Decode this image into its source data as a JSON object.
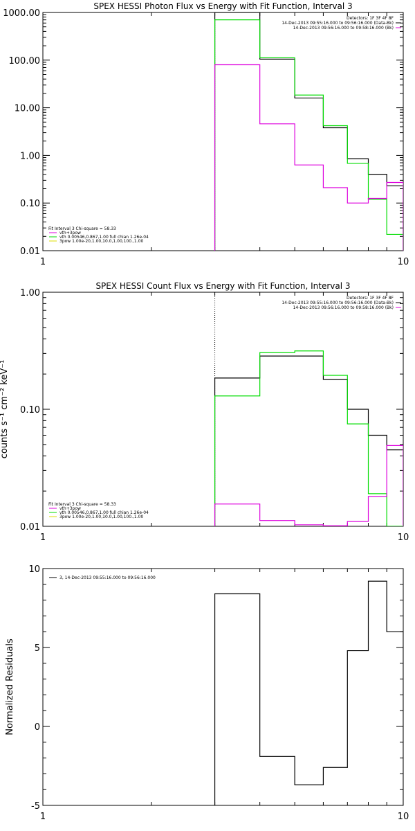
{
  "chart_data": [
    {
      "type": "line",
      "title": "SPEX HESSI Photon Flux vs Energy with Fit Function, Interval 3",
      "xlabel": "",
      "ylabel": "",
      "xscale": "log",
      "yscale": "log",
      "xlim": [
        1,
        10
      ],
      "ylim": [
        0.01,
        1000
      ],
      "xticks": [
        "1",
        "10"
      ],
      "yticks": [
        {
          "v": 1000,
          "label": "1000.00"
        },
        {
          "v": 100,
          "label": "100.00"
        },
        {
          "v": 10,
          "label": "10.00"
        },
        {
          "v": 1,
          "label": "1.00"
        },
        {
          "v": 0.1,
          "label": "0.10"
        },
        {
          "v": 0.01,
          "label": "0.01"
        }
      ],
      "bin_edges": [
        3,
        4,
        5,
        6,
        7,
        8,
        9,
        10
      ],
      "vline_x": 3,
      "series": [
        {
          "color": "#000000",
          "values": [
            1000,
            105,
            16,
            3.8,
            0.85,
            0.4,
            0.23
          ]
        },
        {
          "color": "#00dd00",
          "values": [
            700,
            112,
            18.5,
            4.2,
            0.68,
            0.12,
            0.022
          ]
        },
        {
          "color": "#dd00dd",
          "values": [
            80,
            4.6,
            0.63,
            0.21,
            0.1,
            0.125,
            0.27
          ]
        }
      ],
      "legend_right": [
        {
          "text": "Detectors: 1F 3F 4F 8F",
          "color": ""
        },
        {
          "text": "14-Dec-2013 09:55:16.000 to 09:56:16.000 (Data-Bk)",
          "color": "#000000"
        },
        {
          "text": "14-Dec-2013 09:56:16.000 to 09:58:16.000 (Bk)",
          "color": "#dd00dd"
        }
      ],
      "legend_left": [
        {
          "text": "Fit Interval 3   Chi-square = 58.33",
          "color": ""
        },
        {
          "text": "vth+3pow",
          "color": "#dd00dd"
        },
        {
          "text": "vth 0.00546,0.867,1.00  full chian 1.26e-04",
          "color": "#00dd00"
        },
        {
          "text": "3pow 1.00e-20,1.00,10.0,1.00,100.,1.00",
          "color": "#dddd00"
        }
      ]
    },
    {
      "type": "line",
      "title": "SPEX HESSI Count Flux vs Energy with Fit Function, Interval 3",
      "xlabel": "",
      "ylabel": "counts s⁻¹ cm⁻² keV⁻¹",
      "xscale": "log",
      "yscale": "log",
      "xlim": [
        1,
        10
      ],
      "ylim": [
        0.01,
        1
      ],
      "xticks": [
        "1",
        "10"
      ],
      "yticks": [
        {
          "v": 1,
          "label": "1.00"
        },
        {
          "v": 0.1,
          "label": "0.10"
        },
        {
          "v": 0.01,
          "label": "0.01"
        }
      ],
      "bin_edges": [
        3,
        4,
        5,
        6,
        7,
        8,
        9,
        10
      ],
      "vline_x": 3,
      "series": [
        {
          "color": "#000000",
          "values": [
            0.185,
            0.285,
            0.285,
            0.18,
            0.1,
            0.06,
            0.045
          ]
        },
        {
          "color": "#00dd00",
          "values": [
            0.13,
            0.305,
            0.315,
            0.195,
            0.075,
            0.019,
            0.0
          ]
        },
        {
          "color": "#dd00dd",
          "values": [
            0.0155,
            0.0112,
            0.0103,
            0.0101,
            0.011,
            0.018,
            0.049
          ]
        }
      ],
      "legend_right": [
        {
          "text": "Detectors: 1F 3F 4F 8F",
          "color": ""
        },
        {
          "text": "14-Dec-2013 09:55:16.000 to 09:56:16.000 (Data-Bk)",
          "color": "#000000"
        },
        {
          "text": "14-Dec-2013 09:56:16.000 to 09:58:16.000 (Bk)",
          "color": "#dd00dd"
        }
      ],
      "legend_left": [
        {
          "text": "Fit Interval 3   Chi-square = 58.33",
          "color": ""
        },
        {
          "text": "vth+3pow",
          "color": "#dd00dd"
        },
        {
          "text": "vth 0.00546,0.867,1.00  full chian 1.26e-04",
          "color": "#00dd00"
        },
        {
          "text": "3pow 1.00e-20,1.00,10.0,1.00,100.,1.00",
          "color": "#dddd00"
        }
      ]
    },
    {
      "type": "line",
      "title": "",
      "xlabel": "",
      "ylabel": "Normalized Residuals",
      "xscale": "log",
      "yscale": "linear",
      "xlim": [
        1,
        10
      ],
      "ylim": [
        -5,
        10
      ],
      "xticks": [
        "1",
        "10"
      ],
      "yticks": [
        {
          "v": 10,
          "label": "10"
        },
        {
          "v": 5,
          "label": "5"
        },
        {
          "v": 0,
          "label": "0"
        },
        {
          "v": -5,
          "label": "-5"
        }
      ],
      "bin_edges": [
        3,
        4,
        5,
        6,
        7,
        8,
        9,
        10
      ],
      "vline_x": null,
      "series": [
        {
          "color": "#000000",
          "values": [
            8.4,
            -1.9,
            -3.7,
            -2.6,
            4.8,
            9.2,
            6.0
          ]
        }
      ],
      "legend_right": [],
      "legend_left": [
        {
          "text": "3, 14-Dec-2013 09:55:16.000 to 09:56:16.000",
          "color": "#000000"
        }
      ]
    }
  ]
}
